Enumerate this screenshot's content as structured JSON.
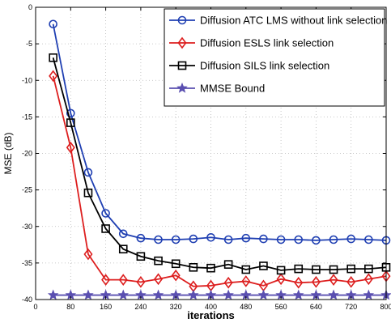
{
  "chart_data": {
    "type": "line",
    "xlabel": "iterations",
    "ylabel": "MSE (dB)",
    "xlim": [
      0,
      800
    ],
    "ylim": [
      -40,
      0
    ],
    "xticks": [
      0,
      80,
      160,
      240,
      320,
      400,
      480,
      560,
      640,
      720,
      800
    ],
    "yticks": [
      0,
      -5,
      -10,
      -15,
      -20,
      -25,
      -30,
      -35,
      -40
    ],
    "grid": true,
    "legend_position": "top-right",
    "series": [
      {
        "name": "Diffusion ATC LMS without link selection",
        "color": "#1f3fb2",
        "marker": "circle",
        "x": [
          40,
          80,
          120,
          160,
          200,
          240,
          280,
          320,
          360,
          400,
          440,
          480,
          520,
          560,
          600,
          640,
          680,
          720,
          760,
          800
        ],
        "y": [
          -2.3,
          -14.5,
          -22.6,
          -28.2,
          -31.0,
          -31.6,
          -31.8,
          -31.8,
          -31.7,
          -31.5,
          -31.8,
          -31.6,
          -31.7,
          -31.8,
          -31.8,
          -31.9,
          -31.8,
          -31.7,
          -31.8,
          -31.9
        ]
      },
      {
        "name": "Diffusion ESLS link selection",
        "color": "#dd1f1f",
        "marker": "diamond",
        "x": [
          40,
          80,
          120,
          160,
          200,
          240,
          280,
          320,
          360,
          400,
          440,
          480,
          520,
          560,
          600,
          640,
          680,
          720,
          760,
          800
        ],
        "y": [
          -9.4,
          -19.2,
          -33.8,
          -37.3,
          -37.3,
          -37.6,
          -37.2,
          -36.7,
          -38.2,
          -38.1,
          -37.7,
          -37.5,
          -38.1,
          -37.2,
          -37.7,
          -37.6,
          -37.3,
          -37.6,
          -37.2,
          -36.8
        ]
      },
      {
        "name": "Diffusion SILS link selection",
        "color": "#000000",
        "marker": "square",
        "x": [
          40,
          80,
          120,
          160,
          200,
          240,
          280,
          320,
          360,
          400,
          440,
          480,
          520,
          560,
          600,
          640,
          680,
          720,
          760,
          800
        ],
        "y": [
          -6.9,
          -15.8,
          -25.4,
          -30.3,
          -33.1,
          -34.1,
          -34.7,
          -35.1,
          -35.6,
          -35.7,
          -35.2,
          -35.9,
          -35.4,
          -36.0,
          -35.8,
          -35.9,
          -35.9,
          -35.8,
          -35.8,
          -35.6
        ]
      },
      {
        "name": "MMSE Bound",
        "color": "#5a4fb0",
        "marker": "star",
        "x": [
          40,
          80,
          120,
          160,
          200,
          240,
          280,
          320,
          360,
          400,
          440,
          480,
          520,
          560,
          600,
          640,
          680,
          720,
          760,
          800
        ],
        "y": [
          -39.4,
          -39.4,
          -39.4,
          -39.4,
          -39.4,
          -39.4,
          -39.4,
          -39.4,
          -39.4,
          -39.4,
          -39.4,
          -39.4,
          -39.4,
          -39.4,
          -39.4,
          -39.4,
          -39.4,
          -39.4,
          -39.4,
          -39.4
        ]
      }
    ]
  }
}
